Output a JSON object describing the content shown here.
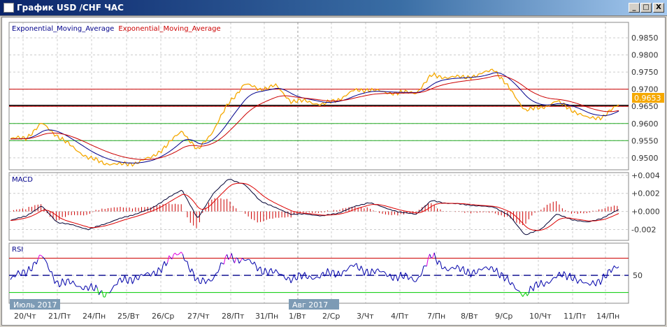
{
  "window": {
    "title": "График USD /CHF  ЧАС",
    "minimize": "_",
    "maximize": "□",
    "close": "X"
  },
  "legend": {
    "ema_fast": "Exponential_Moving_Average",
    "ema_slow": "Exponential_Moving_Average"
  },
  "colors": {
    "price": "#f5a800",
    "ema_fast": "#00008b",
    "ema_slow": "#cc0000",
    "macd": "#000033",
    "signal": "#dd0000",
    "rsi": "#0000aa",
    "rsi_over": "#e000e0",
    "rsi_under": "#00cc00",
    "current_price_bg": "#f5a800"
  },
  "current_price": "0.9653",
  "chart_data": [
    {
      "type": "line",
      "name": "price",
      "ylim": [
        0.9465,
        0.9895
      ],
      "yticks": [
        "0.9850",
        "0.9800",
        "0.9750",
        "0.9700",
        "0.9650",
        "0.9600",
        "0.9550",
        "0.9500"
      ],
      "ytick_values": [
        0.985,
        0.98,
        0.975,
        0.97,
        0.965,
        0.96,
        0.955,
        0.95
      ],
      "hlines": [
        {
          "value": 0.97,
          "color": "#cc0000"
        },
        {
          "value": 0.9653,
          "color": "#000000"
        },
        {
          "value": 0.965,
          "color": "#cc0000"
        },
        {
          "value": 0.96,
          "color": "#22aa22"
        },
        {
          "value": 0.955,
          "color": "#22aa22"
        }
      ],
      "values": [
        0.9555,
        0.9558,
        0.96,
        0.9565,
        0.953,
        0.95,
        0.9485,
        0.948,
        0.9485,
        0.95,
        0.9535,
        0.958,
        0.952,
        0.958,
        0.966,
        0.9715,
        0.97,
        0.971,
        0.9665,
        0.9665,
        0.9655,
        0.967,
        0.9695,
        0.97,
        0.969,
        0.969,
        0.969,
        0.974,
        0.9735,
        0.9735,
        0.974,
        0.976,
        0.97,
        0.964,
        0.9645,
        0.9665,
        0.964,
        0.9615,
        0.962,
        0.9655
      ]
    },
    {
      "type": "line",
      "name": "MACD",
      "label": "MACD",
      "ylim": [
        -0.0032,
        0.0043
      ],
      "yticks": [
        "+0.004",
        "+0.002",
        "+0.000",
        "-0.002"
      ],
      "ytick_values": [
        0.004,
        0.002,
        0,
        -0.002
      ],
      "values": [
        -0.001,
        -0.0005,
        0.0006,
        -0.0012,
        -0.0015,
        -0.002,
        -0.0014,
        -0.0008,
        -0.0003,
        0.0003,
        0.0014,
        0.0024,
        -0.0008,
        0.002,
        0.0036,
        0.003,
        0.0012,
        0.0004,
        -0.0003,
        -0.0003,
        -0.0005,
        -0.0002,
        0.0005,
        0.001,
        0.0004,
        -0.0001,
        -0.0003,
        0.0012,
        0.0009,
        0.0008,
        0.0006,
        0.0005,
        -0.0005,
        -0.0026,
        -0.002,
        -0.0003,
        -0.0009,
        -0.0012,
        -0.0007,
        0.0002
      ]
    },
    {
      "type": "line",
      "name": "RSI",
      "label": "RSI",
      "ylim": [
        17.5,
        87.5
      ],
      "yticks": [
        "50"
      ],
      "ytick_values": [
        50
      ],
      "levels": {
        "overbought": 70,
        "middle": 50,
        "oversold": 30
      },
      "values": [
        45,
        55,
        72,
        42,
        40,
        36,
        28,
        42,
        48,
        50,
        65,
        78,
        40,
        48,
        72,
        68,
        58,
        52,
        47,
        48,
        50,
        53,
        60,
        55,
        52,
        48,
        45,
        72,
        58,
        56,
        54,
        60,
        40,
        28,
        40,
        48,
        50,
        37,
        48,
        60
      ]
    }
  ],
  "xaxis": {
    "labels": [
      "20/Чт",
      "21/Пт",
      "24/Пн",
      "25/Вт",
      "26/Ср",
      "27/Чт",
      "28/Пт",
      "31/Пн",
      "1/Вт",
      "2/Ср",
      "3/Чт",
      "4/Пт",
      "7/Пн",
      "8/Вт",
      "9/Ср",
      "10/Чт",
      "11/Пт",
      "14/Пн"
    ],
    "months": [
      "Июль 2017",
      "Авг 2017"
    ]
  }
}
